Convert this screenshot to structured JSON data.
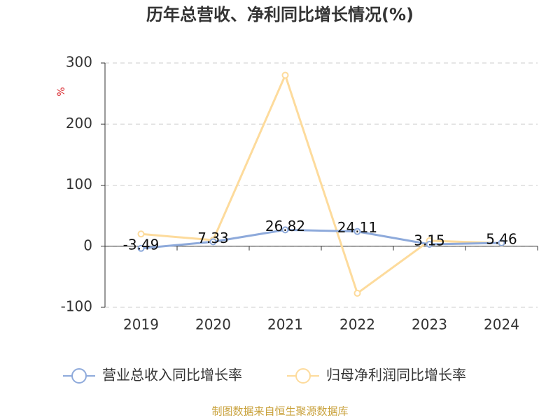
{
  "chart_data": {
    "type": "line",
    "title": "历年总营收、净利同比增长情况(%)",
    "y_label": "%",
    "source": "制图数据来自恒生聚源数据库",
    "categories": [
      "2019",
      "2020",
      "2021",
      "2022",
      "2023",
      "2024"
    ],
    "series": [
      {
        "name": "营业总收入同比增长率",
        "color": "#8eaadb",
        "values": [
          -3.49,
          7.33,
          26.82,
          24.11,
          3.15,
          5.46
        ],
        "show_labels": true
      },
      {
        "name": "归母净利润同比增长率",
        "color": "#fddb9c",
        "values": [
          20,
          10,
          280,
          -77,
          9,
          5
        ],
        "show_labels": false
      }
    ],
    "ylim": [
      -100,
      300
    ],
    "yticks": [
      -100,
      0,
      100,
      200,
      300
    ],
    "grid": true
  }
}
